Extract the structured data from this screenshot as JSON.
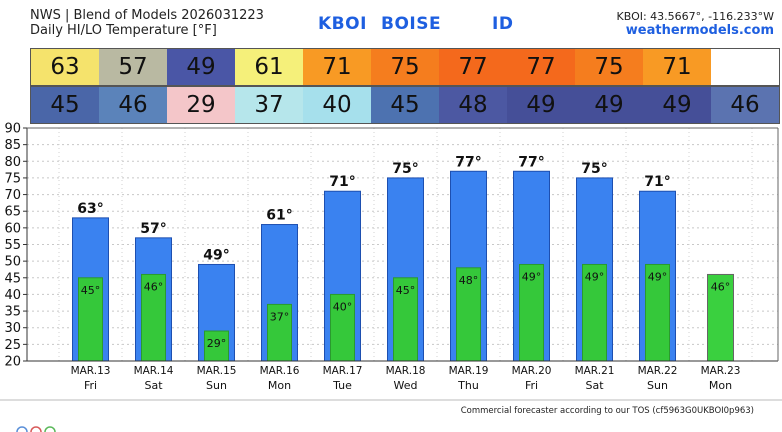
{
  "header": {
    "line1": "NWS | Blend of Models 2026031223",
    "line2": "Daily HI/LO Temperature [°F]",
    "station": "KBOI",
    "city": "BOISE",
    "state": "ID",
    "coords": "KBOI: 43.5667°, -116.233°W",
    "site": "weathermodels.com"
  },
  "footer": "Commercial forecaster according to our TOS (cf5963G0UKBOI0p963)",
  "colors": {
    "high_bar": "#3a82f0",
    "low_bar": "#35c83a",
    "last_low_bar": "#3ad03f"
  },
  "chart_data": {
    "type": "bar",
    "categories": [
      "MAR.13",
      "MAR.14",
      "MAR.15",
      "MAR.16",
      "MAR.17",
      "MAR.18",
      "MAR.19",
      "MAR.20",
      "MAR.21",
      "MAR.22",
      "MAR.23"
    ],
    "weekdays": [
      "Fri",
      "Sat",
      "Sun",
      "Mon",
      "Tue",
      "Wed",
      "Thu",
      "Fri",
      "Sat",
      "Sun",
      "Mon"
    ],
    "series": [
      {
        "values": [
          63,
          57,
          49,
          61,
          71,
          75,
          77,
          77,
          75,
          71,
          null
        ]
      },
      {
        "values": [
          45,
          46,
          29,
          37,
          40,
          45,
          48,
          49,
          49,
          49,
          46
        ]
      }
    ],
    "high_labels": [
      "63°",
      "57°",
      "49°",
      "61°",
      "71°",
      "75°",
      "77°",
      "77°",
      "75°",
      "71°",
      ""
    ],
    "low_labels": [
      "45°",
      "46°",
      "29°",
      "37°",
      "40°",
      "45°",
      "48°",
      "49°",
      "49°",
      "49°",
      "46°"
    ],
    "high_cells": [
      "63",
      "57",
      "49",
      "61",
      "71",
      "75",
      "77",
      "77",
      "75",
      "71",
      ""
    ],
    "low_cells": [
      "45",
      "46",
      "29",
      "37",
      "40",
      "45",
      "48",
      "49",
      "49",
      "49",
      "46"
    ],
    "high_cell_colors": [
      "#f5e36c",
      "#b9b9a2",
      "#4a56a6",
      "#f5f07a",
      "#f89a24",
      "#f57d1e",
      "#f4691c",
      "#f4691c",
      "#f57d1e",
      "#f89a24",
      ""
    ],
    "low_cell_colors": [
      "#4a66a8",
      "#5b83ba",
      "#f4c6c9",
      "#b6e6eb",
      "#a6e0ec",
      "#4d72b0",
      "#4c58a2",
      "#454f98",
      "#454f98",
      "#454f98",
      "#5b73b0"
    ],
    "yticks": [
      "20",
      "25",
      "30",
      "35",
      "40",
      "45",
      "50",
      "55",
      "60",
      "65",
      "70",
      "75",
      "80",
      "85",
      "90"
    ],
    "ylim": [
      20,
      90
    ],
    "grid": true
  }
}
